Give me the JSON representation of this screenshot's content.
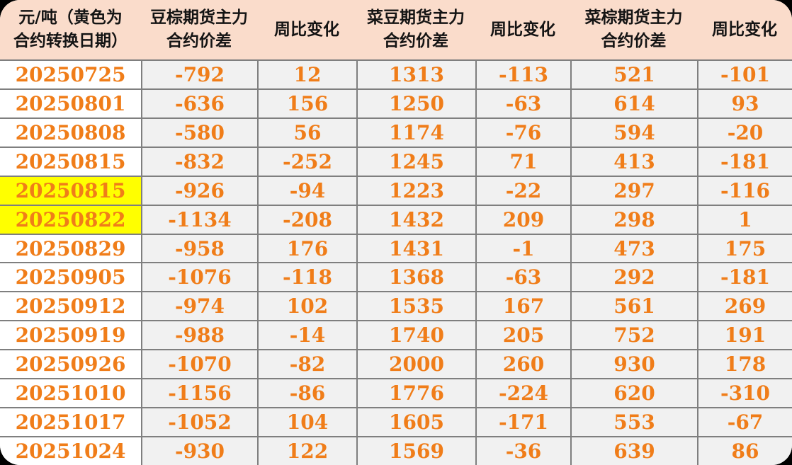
{
  "colors": {
    "header_bg": "#FADCCB",
    "value_cell_bg": "#F1F1F1",
    "date_cell_bg": "#FFFFFF",
    "highlight_bg": "#FFFF00",
    "gridline": "#7F7F7F",
    "number_text": "#F07D19",
    "header_text": "#141414",
    "outside_corner": "#000000"
  },
  "table": {
    "headers": [
      {
        "lines": [
          "元/吨（黄色为",
          "合约转换日期）"
        ]
      },
      {
        "lines": [
          "豆棕期货主力",
          "合约价差"
        ]
      },
      {
        "lines": [
          "周比变化"
        ]
      },
      {
        "lines": [
          "菜豆期货主力",
          "合约价差"
        ]
      },
      {
        "lines": [
          "周比变化"
        ]
      },
      {
        "lines": [
          "菜棕期货主力",
          "合约价差"
        ]
      },
      {
        "lines": [
          "周比变化"
        ]
      }
    ],
    "rows": [
      {
        "date": "20250725",
        "highlight": false,
        "values": [
          "-792",
          "12",
          "1313",
          "-113",
          "521",
          "-101"
        ]
      },
      {
        "date": "20250801",
        "highlight": false,
        "values": [
          "-636",
          "156",
          "1250",
          "-63",
          "614",
          "93"
        ]
      },
      {
        "date": "20250808",
        "highlight": false,
        "values": [
          "-580",
          "56",
          "1174",
          "-76",
          "594",
          "-20"
        ]
      },
      {
        "date": "20250815",
        "highlight": false,
        "values": [
          "-832",
          "-252",
          "1245",
          "71",
          "413",
          "-181"
        ]
      },
      {
        "date": "20250815",
        "highlight": true,
        "values": [
          "-926",
          "-94",
          "1223",
          "-22",
          "297",
          "-116"
        ]
      },
      {
        "date": "20250822",
        "highlight": true,
        "values": [
          "-1134",
          "-208",
          "1432",
          "209",
          "298",
          "1"
        ]
      },
      {
        "date": "20250829",
        "highlight": false,
        "values": [
          "-958",
          "176",
          "1431",
          "-1",
          "473",
          "175"
        ]
      },
      {
        "date": "20250905",
        "highlight": false,
        "values": [
          "-1076",
          "-118",
          "1368",
          "-63",
          "292",
          "-181"
        ]
      },
      {
        "date": "20250912",
        "highlight": false,
        "values": [
          "-974",
          "102",
          "1535",
          "167",
          "561",
          "269"
        ]
      },
      {
        "date": "20250919",
        "highlight": false,
        "values": [
          "-988",
          "-14",
          "1740",
          "205",
          "752",
          "191"
        ]
      },
      {
        "date": "20250926",
        "highlight": false,
        "values": [
          "-1070",
          "-82",
          "2000",
          "260",
          "930",
          "178"
        ]
      },
      {
        "date": "20251010",
        "highlight": false,
        "values": [
          "-1156",
          "-86",
          "1776",
          "-224",
          "620",
          "-310"
        ]
      },
      {
        "date": "20251017",
        "highlight": false,
        "values": [
          "-1052",
          "104",
          "1605",
          "-171",
          "553",
          "-67"
        ]
      },
      {
        "date": "20251024",
        "highlight": false,
        "values": [
          "-930",
          "122",
          "1569",
          "-36",
          "639",
          "86"
        ]
      }
    ]
  },
  "chart_data": {
    "type": "table",
    "title": "",
    "unit_note": "元/吨（黄色为合约转换日期）",
    "columns": [
      "元/吨（黄色为合约转换日期）",
      "豆棕期货主力合约价差",
      "周比变化",
      "菜豆期货主力合约价差",
      "周比变化",
      "菜棕期货主力合约价差",
      "周比变化"
    ],
    "rows": [
      [
        "20250725",
        -792,
        12,
        1313,
        -113,
        521,
        -101
      ],
      [
        "20250801",
        -636,
        156,
        1250,
        -63,
        614,
        93
      ],
      [
        "20250808",
        -580,
        56,
        1174,
        -76,
        594,
        -20
      ],
      [
        "20250815",
        -832,
        -252,
        1245,
        71,
        413,
        -181
      ],
      [
        "20250815",
        -926,
        -94,
        1223,
        -22,
        297,
        -116
      ],
      [
        "20250822",
        -1134,
        -208,
        1432,
        209,
        298,
        1
      ],
      [
        "20250829",
        -958,
        176,
        1431,
        -1,
        473,
        175
      ],
      [
        "20250905",
        -1076,
        -118,
        1368,
        -63,
        292,
        -181
      ],
      [
        "20250912",
        -974,
        102,
        1535,
        167,
        561,
        269
      ],
      [
        "20250919",
        -988,
        -14,
        1740,
        205,
        752,
        191
      ],
      [
        "20250926",
        -1070,
        -82,
        2000,
        260,
        930,
        178
      ],
      [
        "20251010",
        -1156,
        -86,
        1776,
        -224,
        620,
        -310
      ],
      [
        "20251017",
        -1052,
        104,
        1605,
        -171,
        553,
        -67
      ],
      [
        "20251024",
        -930,
        122,
        1569,
        -36,
        639,
        86
      ]
    ],
    "highlighted_row_indices": [
      4,
      5
    ],
    "highlight_meaning": "黄色为合约转换日期"
  }
}
